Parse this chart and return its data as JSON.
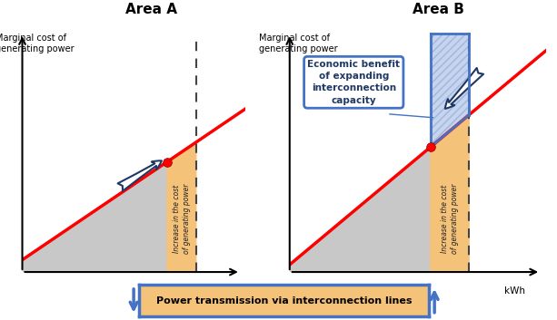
{
  "title_A": "Area A",
  "title_B": "Area B",
  "ylabel": "Marginal cost of\ngenerating power",
  "xlabel": "kWh",
  "line_color": "#FF0000",
  "dot_color": "#FF0000",
  "bg_color": "#FFFFFF",
  "gray_fill": "#C8C8C8",
  "orange_fill": "#F5C27A",
  "blue_color": "#4472C4",
  "dashed_color": "#444444",
  "arrow_color": "#1F3864",
  "transmission_text": "Power transmission via interconnection lines",
  "annotation_text": "Economic benefit\nof expanding\ninterconnection\ncapacity",
  "rotated_text": "Increase in the cost\nof generating power",
  "panel_A": {
    "xlim": [
      0,
      10
    ],
    "ylim": [
      0,
      10
    ],
    "slope": 0.62,
    "intercept": 0.5,
    "x_dot": 6.5,
    "x_dashed": 7.8
  },
  "panel_B": {
    "xlim": [
      0,
      10
    ],
    "ylim": [
      0,
      10
    ],
    "slope": 0.88,
    "intercept": 0.3,
    "x_dot": 5.5,
    "x_dashed": 7.0
  }
}
